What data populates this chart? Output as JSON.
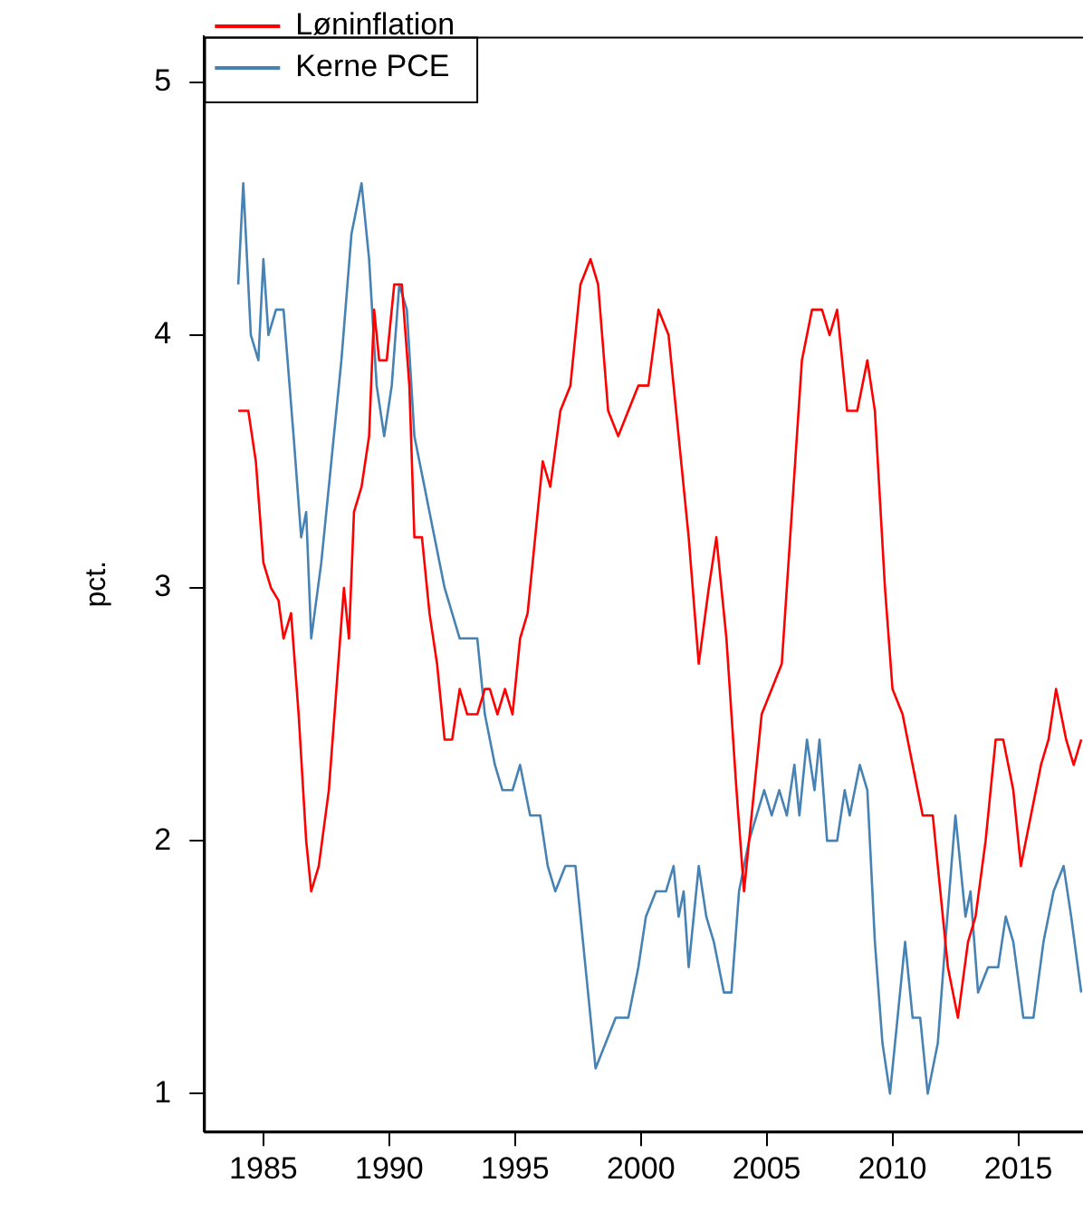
{
  "chart_data": {
    "type": "line",
    "ylabel": "pct.",
    "xlim": [
      1982.64,
      2017.57
    ],
    "ylim": [
      0.85,
      5.18
    ],
    "xticks": [
      1985,
      1990,
      1995,
      2000,
      2005,
      2010,
      2015
    ],
    "yticks": [
      1,
      2,
      3,
      4,
      5
    ],
    "grid": false,
    "legend": "top left",
    "marker": "none",
    "line_style": "solid",
    "series": [
      {
        "name": "Løninflation",
        "color": "#ff0000",
        "x": [
          1984.0,
          1984.4,
          1984.7,
          1985.0,
          1985.3,
          1985.6,
          1985.8,
          1986.1,
          1986.4,
          1986.7,
          1986.9,
          1987.2,
          1987.6,
          1987.9,
          1988.2,
          1988.4,
          1988.6,
          1988.9,
          1989.2,
          1989.4,
          1989.6,
          1989.9,
          1990.2,
          1990.5,
          1990.8,
          1991.0,
          1991.3,
          1991.6,
          1991.9,
          1992.2,
          1992.5,
          1992.8,
          1993.1,
          1993.5,
          1993.8,
          1994.0,
          1994.3,
          1994.6,
          1994.9,
          1995.2,
          1995.5,
          1995.8,
          1996.1,
          1996.4,
          1996.8,
          1997.2,
          1997.6,
          1998.0,
          1998.3,
          1998.7,
          1999.1,
          1999.5,
          1999.9,
          2000.3,
          2000.7,
          2001.1,
          2001.5,
          2001.9,
          2002.3,
          2002.7,
          2003.0,
          2003.4,
          2003.8,
          2004.1,
          2004.5,
          2004.8,
          2005.2,
          2005.6,
          2006.0,
          2006.4,
          2006.8,
          2007.2,
          2007.5,
          2007.8,
          2008.2,
          2008.6,
          2009.0,
          2009.3,
          2009.7,
          2010.0,
          2010.4,
          2010.8,
          2011.2,
          2011.6,
          2011.9,
          2012.2,
          2012.6,
          2013.0,
          2013.3,
          2013.7,
          2014.1,
          2014.4,
          2014.8,
          2015.1,
          2015.5,
          2015.9,
          2016.2,
          2016.5,
          2016.9,
          2017.2,
          2017.5
        ],
        "values": [
          3.7,
          3.7,
          3.5,
          3.1,
          3.0,
          2.95,
          2.8,
          2.9,
          2.5,
          2.0,
          1.8,
          1.9,
          2.2,
          2.6,
          3.0,
          2.8,
          3.3,
          3.4,
          3.6,
          4.1,
          3.9,
          3.9,
          4.2,
          4.2,
          3.8,
          3.2,
          3.2,
          2.9,
          2.7,
          2.4,
          2.4,
          2.6,
          2.5,
          2.5,
          2.6,
          2.6,
          2.5,
          2.6,
          2.5,
          2.8,
          2.9,
          3.2,
          3.5,
          3.4,
          3.7,
          3.8,
          4.2,
          4.3,
          4.2,
          3.7,
          3.6,
          3.7,
          3.8,
          3.8,
          4.1,
          4.0,
          3.6,
          3.2,
          2.7,
          3.0,
          3.2,
          2.8,
          2.2,
          1.8,
          2.2,
          2.5,
          2.6,
          2.7,
          3.3,
          3.9,
          4.1,
          4.1,
          4.0,
          4.1,
          3.7,
          3.7,
          3.9,
          3.7,
          3.0,
          2.6,
          2.5,
          2.3,
          2.1,
          2.1,
          1.8,
          1.5,
          1.3,
          1.6,
          1.7,
          2.0,
          2.4,
          2.4,
          2.2,
          1.9,
          2.1,
          2.3,
          2.4,
          2.6,
          2.4,
          2.3,
          2.4
        ]
      },
      {
        "name": "Kerne PCE",
        "color": "#4682b4",
        "x": [
          1984.0,
          1984.2,
          1984.5,
          1984.8,
          1985.0,
          1985.2,
          1985.5,
          1985.8,
          1986.2,
          1986.5,
          1986.7,
          1986.9,
          1987.3,
          1987.7,
          1988.1,
          1988.5,
          1988.9,
          1989.2,
          1989.5,
          1989.8,
          1990.1,
          1990.4,
          1990.7,
          1991.0,
          1991.4,
          1991.8,
          1992.2,
          1992.5,
          1992.8,
          1993.1,
          1993.5,
          1993.8,
          1994.2,
          1994.5,
          1994.9,
          1995.2,
          1995.6,
          1996.0,
          1996.3,
          1996.6,
          1997.0,
          1997.4,
          1997.8,
          1998.2,
          1998.6,
          1999.0,
          1999.5,
          1999.9,
          2000.2,
          2000.6,
          2001.0,
          2001.3,
          2001.5,
          2001.7,
          2001.9,
          2002.3,
          2002.6,
          2002.9,
          2003.3,
          2003.6,
          2003.9,
          2004.3,
          2004.6,
          2004.9,
          2005.2,
          2005.5,
          2005.8,
          2006.1,
          2006.3,
          2006.6,
          2006.9,
          2007.1,
          2007.4,
          2007.8,
          2008.1,
          2008.3,
          2008.7,
          2009.0,
          2009.3,
          2009.6,
          2009.9,
          2010.2,
          2010.5,
          2010.8,
          2011.1,
          2011.4,
          2011.8,
          2012.1,
          2012.5,
          2012.9,
          2013.1,
          2013.4,
          2013.8,
          2014.2,
          2014.5,
          2014.8,
          2015.2,
          2015.6,
          2016.0,
          2016.4,
          2016.8,
          2017.1,
          2017.5
        ],
        "values": [
          4.2,
          4.6,
          4.0,
          3.9,
          4.3,
          4.0,
          4.1,
          4.1,
          3.6,
          3.2,
          3.3,
          2.8,
          3.1,
          3.5,
          3.9,
          4.4,
          4.6,
          4.3,
          3.8,
          3.6,
          3.8,
          4.2,
          4.1,
          3.6,
          3.4,
          3.2,
          3.0,
          2.9,
          2.8,
          2.8,
          2.8,
          2.5,
          2.3,
          2.2,
          2.2,
          2.3,
          2.1,
          2.1,
          1.9,
          1.8,
          1.9,
          1.9,
          1.5,
          1.1,
          1.2,
          1.3,
          1.3,
          1.5,
          1.7,
          1.8,
          1.8,
          1.9,
          1.7,
          1.8,
          1.5,
          1.9,
          1.7,
          1.6,
          1.4,
          1.4,
          1.8,
          2.0,
          2.1,
          2.2,
          2.1,
          2.2,
          2.1,
          2.3,
          2.1,
          2.4,
          2.2,
          2.4,
          2.0,
          2.0,
          2.2,
          2.1,
          2.3,
          2.2,
          1.6,
          1.2,
          1.0,
          1.3,
          1.6,
          1.3,
          1.3,
          1.0,
          1.2,
          1.6,
          2.1,
          1.7,
          1.8,
          1.4,
          1.5,
          1.5,
          1.7,
          1.6,
          1.3,
          1.3,
          1.6,
          1.8,
          1.9,
          1.7,
          1.4
        ]
      }
    ]
  }
}
